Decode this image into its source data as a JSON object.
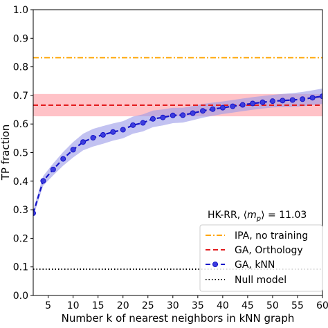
{
  "chart_data": {
    "type": "line",
    "xlabel": "Number k of nearest neighbors in kNN graph",
    "ylabel": "TP fraction",
    "xlim": [
      2,
      60
    ],
    "ylim": [
      0.0,
      1.0
    ],
    "x_ticks": [
      5,
      10,
      15,
      20,
      25,
      30,
      35,
      40,
      45,
      50,
      55,
      60
    ],
    "x_tick_labels": [
      "5",
      "10",
      "15",
      "20",
      "25",
      "30",
      "35",
      "40",
      "45",
      "50",
      "55",
      "60"
    ],
    "y_ticks": [
      0.0,
      0.1,
      0.2,
      0.3,
      0.4,
      0.5,
      0.6,
      0.7,
      0.8,
      0.9,
      1.0
    ],
    "y_tick_labels": [
      "0.0",
      "0.1",
      "0.2",
      "0.3",
      "0.4",
      "0.5",
      "0.6",
      "0.7",
      "0.8",
      "0.9",
      "1.0"
    ],
    "grid": false,
    "annotation": {
      "prefix": "HK-RR, ⟨",
      "symbol": "m",
      "subscript": "p",
      "suffix": "⟩ = 11.03"
    },
    "legend_placement": "lower-right",
    "series": [
      {
        "name": "IPA, no training",
        "style": "dashdot",
        "color": "#ffa500",
        "value": 0.832
      },
      {
        "name": "GA, Orthology",
        "style": "dashed",
        "color": "#e31a1c",
        "band_color": "#ff9aa2",
        "value": 0.666,
        "band": [
          0.627,
          0.705
        ]
      },
      {
        "name": "GA, kNN",
        "style": "dashed-markers",
        "color": "#1515c8",
        "band_color": "#9a9ae8",
        "x": [
          2,
          4,
          6,
          8,
          10,
          12,
          14,
          16,
          18,
          20,
          22,
          24,
          26,
          28,
          30,
          32,
          34,
          36,
          38,
          40,
          42,
          44,
          46,
          48,
          50,
          52,
          54,
          56,
          58,
          60
        ],
        "y": [
          0.288,
          0.401,
          0.441,
          0.478,
          0.51,
          0.537,
          0.552,
          0.562,
          0.572,
          0.58,
          0.596,
          0.604,
          0.618,
          0.623,
          0.63,
          0.631,
          0.638,
          0.646,
          0.652,
          0.657,
          0.662,
          0.667,
          0.672,
          0.676,
          0.68,
          0.682,
          0.684,
          0.687,
          0.692,
          0.697
        ],
        "band_halfwidth": [
          0.012,
          0.017,
          0.021,
          0.024,
          0.027,
          0.029,
          0.031,
          0.031,
          0.03,
          0.03,
          0.03,
          0.03,
          0.029,
          0.028,
          0.027,
          0.026,
          0.025,
          0.024,
          0.023,
          0.022,
          0.022,
          0.022,
          0.022,
          0.022,
          0.022,
          0.023,
          0.024,
          0.025,
          0.026,
          0.027
        ]
      },
      {
        "name": "Null model",
        "style": "dotted",
        "color": "#000000",
        "value": 0.092
      }
    ]
  }
}
